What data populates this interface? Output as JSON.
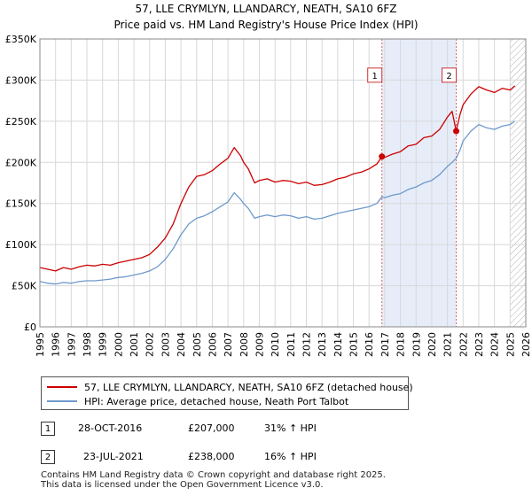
{
  "chart_data": {
    "type": "line",
    "title": "57, LLE CRYMLYN, LLANDARCY, NEATH, SA10 6FZ",
    "subtitle": "Price paid vs. HM Land Registry's House Price Index (HPI)",
    "xlim": [
      1995,
      2026
    ],
    "ylim": [
      0,
      350000
    ],
    "x_ticks": [
      "1995",
      "1996",
      "1997",
      "1998",
      "1999",
      "2000",
      "2001",
      "2002",
      "2003",
      "2004",
      "2005",
      "2006",
      "2007",
      "2008",
      "2009",
      "2010",
      "2011",
      "2012",
      "2013",
      "2014",
      "2015",
      "2016",
      "2017",
      "2018",
      "2019",
      "2020",
      "2021",
      "2022",
      "2023",
      "2024",
      "2025",
      "2026"
    ],
    "y_ticks": [
      {
        "value": 0,
        "label": "£0"
      },
      {
        "value": 50000,
        "label": "£50K"
      },
      {
        "value": 100000,
        "label": "£100K"
      },
      {
        "value": 150000,
        "label": "£150K"
      },
      {
        "value": 200000,
        "label": "£200K"
      },
      {
        "value": 250000,
        "label": "£250K"
      },
      {
        "value": 300000,
        "label": "£300K"
      },
      {
        "value": 350000,
        "label": "£350K"
      }
    ],
    "grid": true,
    "highlight_band": [
      2016.82,
      2021.56
    ],
    "forecast_start": 2025.0,
    "series": [
      {
        "name": "57, LLE CRYMLYN, LLANDARCY, NEATH, SA10 6FZ (detached house)",
        "color": "#cc0000",
        "points": [
          [
            1995,
            72000
          ],
          [
            1995.5,
            70000
          ],
          [
            1996,
            68000
          ],
          [
            1996.5,
            72000
          ],
          [
            1997,
            70000
          ],
          [
            1997.5,
            73000
          ],
          [
            1998,
            75000
          ],
          [
            1998.5,
            74000
          ],
          [
            1999,
            76000
          ],
          [
            1999.5,
            75000
          ],
          [
            2000,
            78000
          ],
          [
            2000.5,
            80000
          ],
          [
            2001,
            82000
          ],
          [
            2001.5,
            84000
          ],
          [
            2002,
            88000
          ],
          [
            2002.5,
            97000
          ],
          [
            2003,
            108000
          ],
          [
            2003.5,
            125000
          ],
          [
            2004,
            150000
          ],
          [
            2004.5,
            170000
          ],
          [
            2005,
            183000
          ],
          [
            2005.5,
            185000
          ],
          [
            2006,
            190000
          ],
          [
            2006.5,
            198000
          ],
          [
            2007,
            205000
          ],
          [
            2007.4,
            218000
          ],
          [
            2007.8,
            208000
          ],
          [
            2008,
            200000
          ],
          [
            2008.3,
            192000
          ],
          [
            2008.7,
            175000
          ],
          [
            2009,
            178000
          ],
          [
            2009.5,
            180000
          ],
          [
            2010,
            176000
          ],
          [
            2010.5,
            178000
          ],
          [
            2011,
            177000
          ],
          [
            2011.5,
            174000
          ],
          [
            2012,
            176000
          ],
          [
            2012.5,
            172000
          ],
          [
            2013,
            173000
          ],
          [
            2013.5,
            176000
          ],
          [
            2014,
            180000
          ],
          [
            2014.5,
            182000
          ],
          [
            2015,
            186000
          ],
          [
            2015.5,
            188000
          ],
          [
            2016,
            192000
          ],
          [
            2016.5,
            198000
          ],
          [
            2016.82,
            207000
          ],
          [
            2017,
            206000
          ],
          [
            2017.5,
            210000
          ],
          [
            2018,
            213000
          ],
          [
            2018.5,
            220000
          ],
          [
            2019,
            222000
          ],
          [
            2019.5,
            230000
          ],
          [
            2020,
            232000
          ],
          [
            2020.5,
            240000
          ],
          [
            2021,
            255000
          ],
          [
            2021.3,
            262000
          ],
          [
            2021.56,
            238000
          ],
          [
            2021.8,
            258000
          ],
          [
            2022,
            270000
          ],
          [
            2022.5,
            283000
          ],
          [
            2023,
            292000
          ],
          [
            2023.5,
            288000
          ],
          [
            2024,
            285000
          ],
          [
            2024.5,
            290000
          ],
          [
            2025,
            288000
          ],
          [
            2025.3,
            293000
          ]
        ]
      },
      {
        "name": "HPI: Average price, detached house, Neath Port Talbot",
        "color": "#6e99cc",
        "points": [
          [
            1995,
            55000
          ],
          [
            1995.5,
            53000
          ],
          [
            1996,
            52000
          ],
          [
            1996.5,
            54000
          ],
          [
            1997,
            53000
          ],
          [
            1997.5,
            55000
          ],
          [
            1998,
            56000
          ],
          [
            1998.5,
            56000
          ],
          [
            1999,
            57000
          ],
          [
            1999.5,
            58000
          ],
          [
            2000,
            60000
          ],
          [
            2000.5,
            61000
          ],
          [
            2001,
            63000
          ],
          [
            2001.5,
            65000
          ],
          [
            2002,
            68000
          ],
          [
            2002.5,
            73000
          ],
          [
            2003,
            82000
          ],
          [
            2003.5,
            95000
          ],
          [
            2004,
            112000
          ],
          [
            2004.5,
            125000
          ],
          [
            2005,
            132000
          ],
          [
            2005.5,
            135000
          ],
          [
            2006,
            140000
          ],
          [
            2006.5,
            146000
          ],
          [
            2007,
            152000
          ],
          [
            2007.4,
            163000
          ],
          [
            2007.8,
            155000
          ],
          [
            2008,
            150000
          ],
          [
            2008.3,
            144000
          ],
          [
            2008.7,
            132000
          ],
          [
            2009,
            134000
          ],
          [
            2009.5,
            136000
          ],
          [
            2010,
            134000
          ],
          [
            2010.5,
            136000
          ],
          [
            2011,
            135000
          ],
          [
            2011.5,
            132000
          ],
          [
            2012,
            134000
          ],
          [
            2012.5,
            131000
          ],
          [
            2013,
            132000
          ],
          [
            2013.5,
            135000
          ],
          [
            2014,
            138000
          ],
          [
            2014.5,
            140000
          ],
          [
            2015,
            142000
          ],
          [
            2015.5,
            144000
          ],
          [
            2016,
            146000
          ],
          [
            2016.5,
            150000
          ],
          [
            2016.82,
            158000
          ],
          [
            2017,
            157000
          ],
          [
            2017.5,
            160000
          ],
          [
            2018,
            162000
          ],
          [
            2018.5,
            167000
          ],
          [
            2019,
            170000
          ],
          [
            2019.5,
            175000
          ],
          [
            2020,
            178000
          ],
          [
            2020.5,
            185000
          ],
          [
            2021,
            195000
          ],
          [
            2021.3,
            200000
          ],
          [
            2021.56,
            205000
          ],
          [
            2021.8,
            215000
          ],
          [
            2022,
            226000
          ],
          [
            2022.5,
            238000
          ],
          [
            2023,
            246000
          ],
          [
            2023.5,
            242000
          ],
          [
            2024,
            240000
          ],
          [
            2024.5,
            244000
          ],
          [
            2025,
            246000
          ],
          [
            2025.3,
            250000
          ]
        ]
      }
    ],
    "markers": [
      {
        "label": "1",
        "x": 2016.82,
        "y": 207000,
        "box_y": 306000
      },
      {
        "label": "2",
        "x": 2021.56,
        "y": 238000,
        "box_y": 306000
      }
    ]
  },
  "legend": {
    "property_label": "57, LLE CRYMLYN, LLANDARCY, NEATH, SA10 6FZ (detached house)",
    "property_color": "#cc0000",
    "hpi_label": "HPI: Average price, detached house, Neath Port Talbot",
    "hpi_color": "#6e99cc"
  },
  "transactions": [
    {
      "num": "1",
      "date": "28-OCT-2016",
      "price": "£207,000",
      "change": "31% ↑ HPI"
    },
    {
      "num": "2",
      "date": "23-JUL-2021",
      "price": "£238,000",
      "change": "16% ↑ HPI"
    }
  ],
  "footer": {
    "line1": "Contains HM Land Registry data © Crown copyright and database right 2025.",
    "line2": "This data is licensed under the Open Government Licence v3.0."
  }
}
